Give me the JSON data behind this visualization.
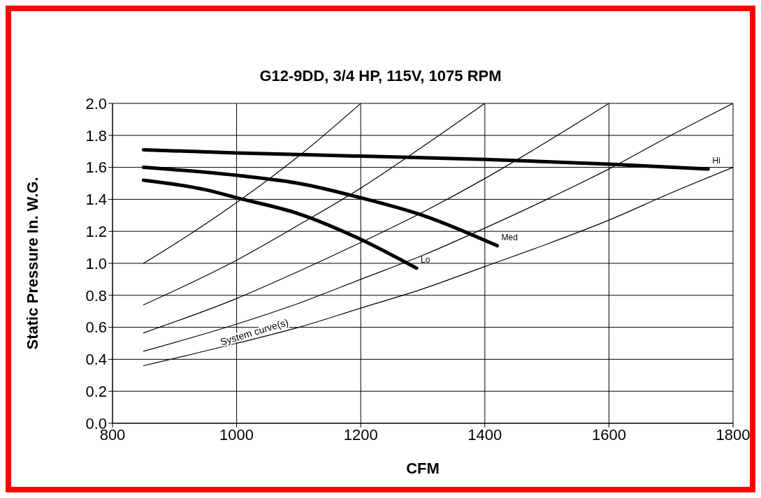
{
  "chart_data": {
    "type": "line",
    "title": "G12-9DD, 3/4 HP, 115V, 1075 RPM",
    "xlabel": "CFM",
    "ylabel": "Static Pressure In. W.G.",
    "xlim": [
      800,
      1800
    ],
    "xticks": [
      800,
      1000,
      1200,
      1400,
      1600,
      1800
    ],
    "ylim": [
      0,
      2.0
    ],
    "yticks": [
      {
        "value": 0,
        "label": "0.0"
      },
      {
        "value": 0.2,
        "label": "0.2"
      },
      {
        "value": 0.4,
        "label": "0.4"
      },
      {
        "value": 0.6,
        "label": "0.6"
      },
      {
        "value": 0.8,
        "label": "0.8"
      },
      {
        "value": 1.0,
        "label": "1.0"
      },
      {
        "value": 1.2,
        "label": "1.2"
      },
      {
        "value": 1.4,
        "label": "1.4"
      },
      {
        "value": 1.6,
        "label": "1.6"
      },
      {
        "value": 1.8,
        "label": "1.8"
      },
      {
        "value": 2.0,
        "label": "2.0"
      }
    ],
    "grid": true,
    "marker": "none",
    "line_style": "solid",
    "annotations": [
      {
        "text": "System curve(s)",
        "x": 1030,
        "y": 0.55
      }
    ],
    "series": [
      {
        "name": "Hi",
        "color": "#000000",
        "x": [
          850,
          1000,
          1200,
          1400,
          1600,
          1760
        ],
        "values": [
          1.71,
          1.69,
          1.67,
          1.65,
          1.62,
          1.59
        ]
      },
      {
        "name": "Med",
        "color": "#000000",
        "x": [
          850,
          1000,
          1100,
          1200,
          1300,
          1420
        ],
        "values": [
          1.6,
          1.55,
          1.5,
          1.41,
          1.3,
          1.11
        ]
      },
      {
        "name": "Lo",
        "color": "#000000",
        "x": [
          850,
          950,
          1000,
          1100,
          1200,
          1290
        ],
        "values": [
          1.52,
          1.46,
          1.41,
          1.31,
          1.15,
          0.97
        ]
      },
      {
        "color": "#000000",
        "x": [
          850,
          900,
          1000,
          1100,
          1200
        ],
        "values": [
          1.0,
          1.12,
          1.38,
          1.67,
          2.0
        ]
      },
      {
        "color": "#000000",
        "x": [
          850,
          1000,
          1100,
          1200,
          1300,
          1400
        ],
        "values": [
          0.74,
          1.02,
          1.24,
          1.47,
          1.73,
          2.0
        ]
      },
      {
        "color": "#000000",
        "x": [
          850,
          1000,
          1100,
          1200,
          1300,
          1400,
          1500,
          1600
        ],
        "values": [
          0.565,
          0.78,
          0.95,
          1.13,
          1.32,
          1.53,
          1.76,
          2.0
        ]
      },
      {
        "color": "#000000",
        "x": [
          850,
          1000,
          1100,
          1200,
          1300,
          1400,
          1500,
          1600,
          1700,
          1800
        ],
        "values": [
          0.45,
          0.62,
          0.75,
          0.9,
          1.05,
          1.22,
          1.4,
          1.59,
          1.8,
          2.0
        ]
      },
      {
        "color": "#000000",
        "x": [
          850,
          1000,
          1100,
          1200,
          1300,
          1400,
          1500,
          1600,
          1700,
          1800
        ],
        "values": [
          0.36,
          0.5,
          0.6,
          0.72,
          0.84,
          0.98,
          1.12,
          1.27,
          1.44,
          1.6
        ]
      }
    ]
  }
}
